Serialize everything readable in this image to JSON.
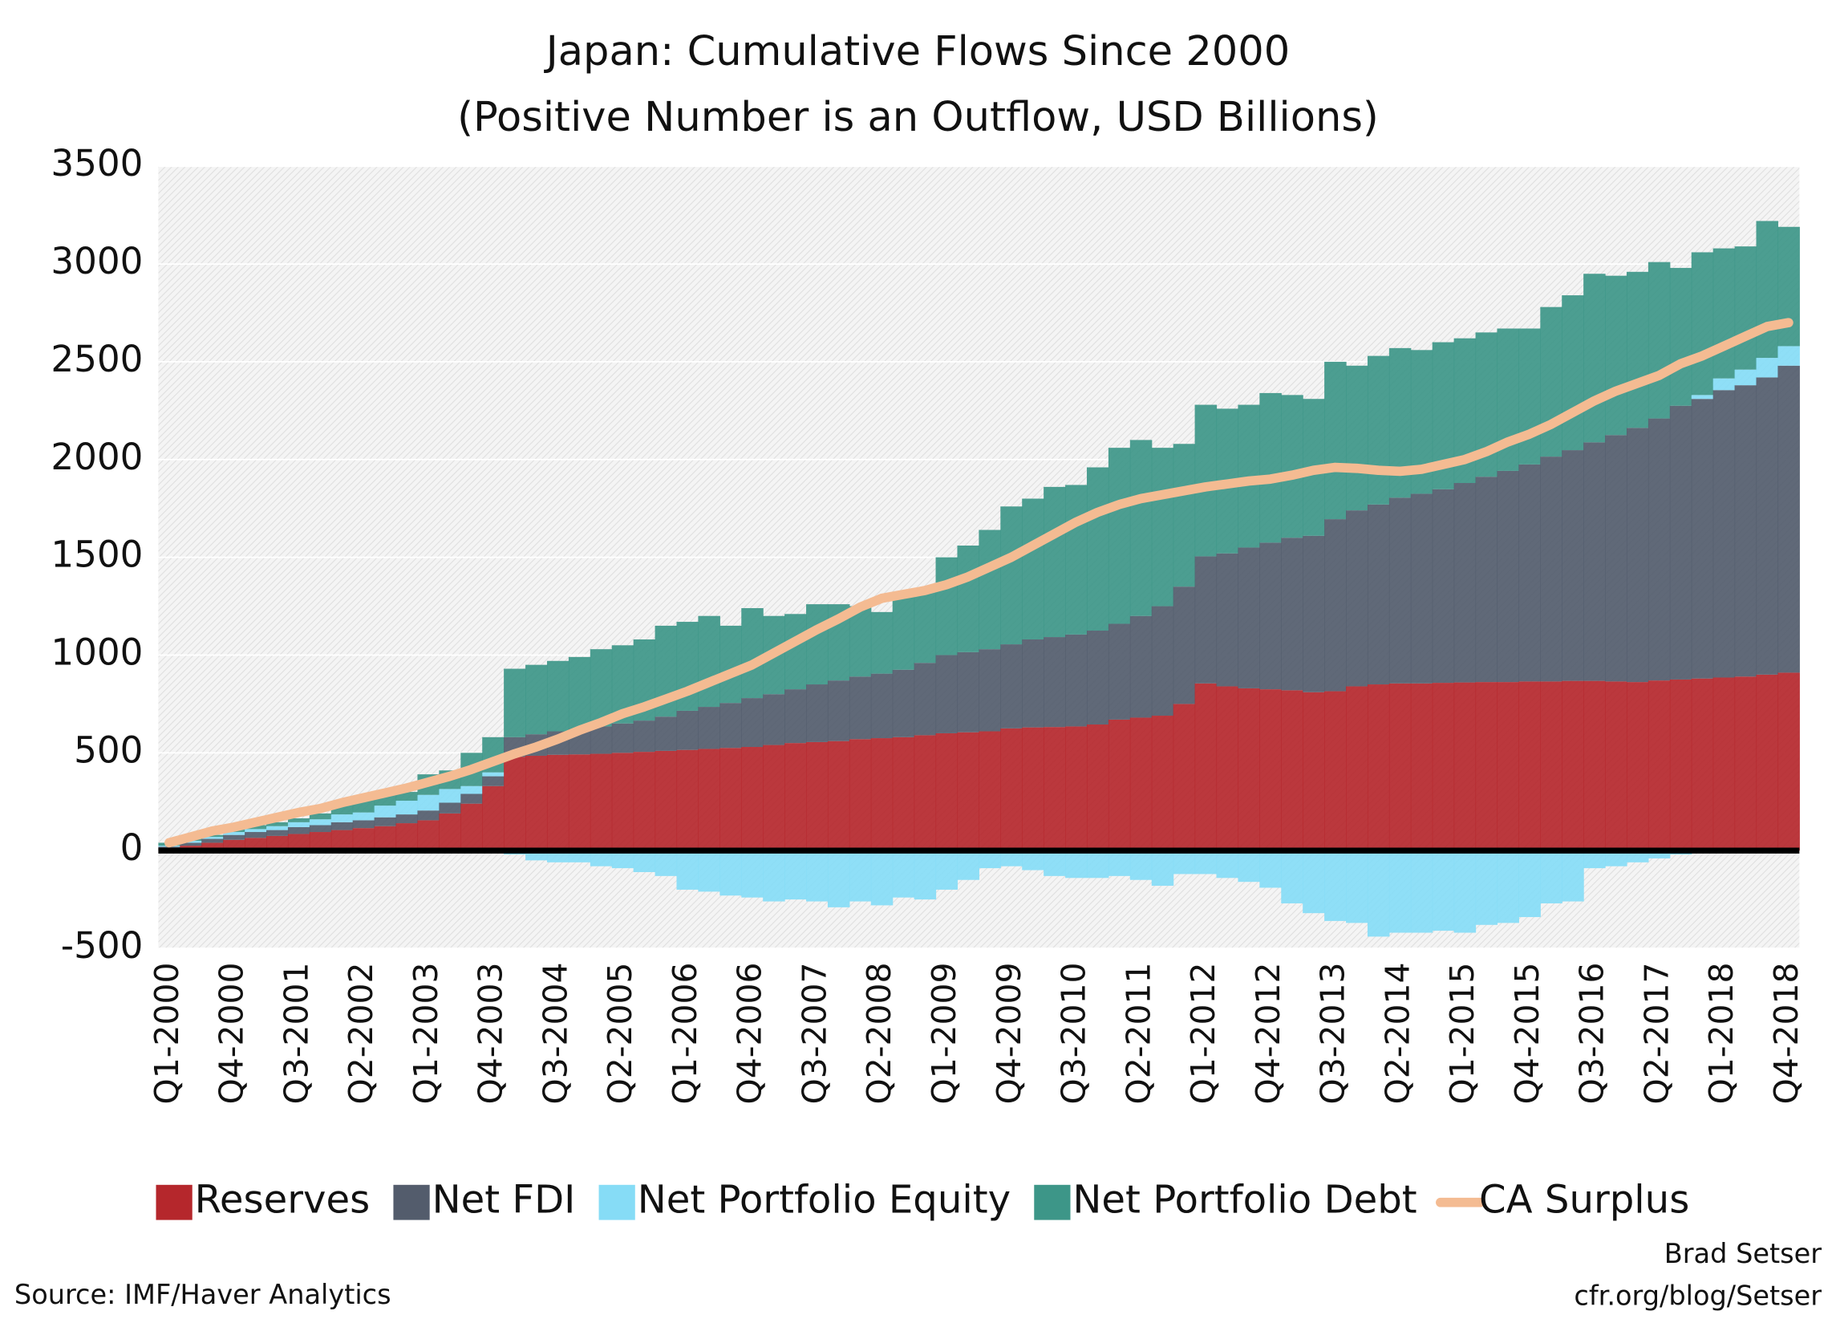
{
  "chart_data": {
    "type": "stacked_bar",
    "title": "Japan: Cumulative Flows Since 2000",
    "subtitle": "(Positive Number is an Outflow, USD Billions)",
    "source": "Source: IMF/Haver Analytics",
    "credits": [
      "Brad Setser",
      "cfr.org/blog/Setser"
    ],
    "categories": [
      "Q1-2000",
      null,
      null,
      "Q4-2000",
      null,
      null,
      "Q3-2001",
      null,
      null,
      "Q2-2002",
      null,
      null,
      "Q1-2003",
      null,
      null,
      "Q4-2003",
      null,
      null,
      "Q3-2004",
      null,
      null,
      "Q2-2005",
      null,
      null,
      "Q1-2006",
      null,
      null,
      "Q4-2006",
      null,
      null,
      "Q3-2007",
      null,
      null,
      "Q2-2008",
      null,
      null,
      "Q1-2009",
      null,
      null,
      "Q4-2009",
      null,
      null,
      "Q3-2010",
      null,
      null,
      "Q2-2011",
      null,
      null,
      "Q1-2012",
      null,
      null,
      "Q4-2012",
      null,
      null,
      "Q3-2013",
      null,
      null,
      "Q2-2014",
      null,
      null,
      "Q1-2015",
      null,
      null,
      "Q4-2015",
      null,
      null,
      "Q3-2016",
      null,
      null,
      "Q2-2017",
      null,
      null,
      "Q1-2018",
      null,
      null,
      "Q4-2018"
    ],
    "ylim": [
      -500,
      3500
    ],
    "yticks": [
      -500,
      0,
      500,
      1000,
      1500,
      2000,
      2500,
      3000,
      3500
    ],
    "grid": true,
    "legend": "bottom",
    "series": [
      {
        "name": "Reserves",
        "color": "#b5272c",
        "values": [
          10,
          25,
          40,
          55,
          65,
          75,
          85,
          95,
          105,
          115,
          125,
          140,
          155,
          190,
          240,
          330,
          480,
          485,
          490,
          492,
          495,
          500,
          505,
          510,
          515,
          520,
          525,
          530,
          540,
          550,
          555,
          560,
          570,
          575,
          580,
          590,
          600,
          605,
          610,
          625,
          630,
          632,
          635,
          645,
          670,
          680,
          690,
          750,
          855,
          840,
          830,
          825,
          820,
          810,
          815,
          840,
          850,
          855,
          855,
          858,
          860,
          862,
          862,
          865,
          865,
          868,
          868,
          865,
          862,
          870,
          875,
          880,
          885,
          890,
          900,
          910
        ]
      },
      {
        "name": "Net FDI",
        "color": "#535c6c",
        "values": [
          10,
          15,
          20,
          25,
          30,
          30,
          35,
          35,
          40,
          40,
          45,
          45,
          50,
          55,
          50,
          50,
          100,
          110,
          120,
          130,
          140,
          150,
          160,
          175,
          200,
          215,
          230,
          250,
          260,
          275,
          295,
          310,
          320,
          330,
          345,
          370,
          400,
          410,
          420,
          430,
          450,
          460,
          470,
          480,
          490,
          520,
          560,
          600,
          650,
          680,
          720,
          750,
          780,
          800,
          880,
          900,
          920,
          950,
          970,
          990,
          1020,
          1050,
          1080,
          1110,
          1150,
          1180,
          1220,
          1260,
          1300,
          1340,
          1400,
          1430,
          1470,
          1490,
          1520,
          1570
        ]
      },
      {
        "name": "Net Portfolio Equity",
        "color": "#86dcf6",
        "values": [
          5,
          10,
          10,
          15,
          15,
          20,
          25,
          30,
          40,
          40,
          60,
          70,
          80,
          70,
          40,
          20,
          -20,
          -50,
          -60,
          -60,
          -80,
          -90,
          -110,
          -130,
          -200,
          -210,
          -230,
          -240,
          -260,
          -250,
          -260,
          -290,
          -260,
          -280,
          -240,
          -250,
          -200,
          -150,
          -90,
          -80,
          -100,
          -130,
          -140,
          -140,
          -130,
          -150,
          -180,
          -120,
          -120,
          -140,
          -160,
          -190,
          -270,
          -320,
          -360,
          -370,
          -440,
          -420,
          -420,
          -410,
          -420,
          -380,
          -370,
          -340,
          -270,
          -260,
          -90,
          -80,
          -60,
          -40,
          -20,
          20,
          60,
          80,
          100,
          100
        ]
      },
      {
        "name": "Net Portfolio Debt",
        "color": "#3d9688",
        "values": [
          15,
          10,
          10,
          15,
          20,
          20,
          20,
          30,
          55,
          75,
          60,
          45,
          105,
          95,
          170,
          180,
          350,
          355,
          360,
          368,
          395,
          400,
          415,
          465,
          455,
          465,
          395,
          460,
          400,
          385,
          410,
          390,
          360,
          315,
          385,
          370,
          500,
          545,
          610,
          705,
          720,
          768,
          765,
          835,
          900,
          900,
          810,
          730,
          775,
          740,
          730,
          765,
          730,
          700,
          805,
          740,
          760,
          765,
          735,
          752,
          740,
          738,
          728,
          695,
          765,
          792,
          862,
          815,
          798,
          800,
          705,
          730,
          665,
          630,
          700,
          610
        ]
      },
      {
        "name": "CA Surplus",
        "color": "#f4bb92",
        "type": "line",
        "values": [
          40,
          70,
          100,
          120,
          145,
          170,
          195,
          215,
          245,
          270,
          295,
          320,
          350,
          380,
          415,
          455,
          495,
          530,
          570,
          615,
          655,
          700,
          735,
          775,
          815,
          860,
          905,
          950,
          1010,
          1070,
          1130,
          1185,
          1245,
          1290,
          1310,
          1330,
          1360,
          1400,
          1450,
          1500,
          1560,
          1620,
          1680,
          1730,
          1770,
          1800,
          1820,
          1840,
          1860,
          1875,
          1890,
          1900,
          1920,
          1945,
          1960,
          1955,
          1945,
          1940,
          1950,
          1975,
          2000,
          2040,
          2090,
          2130,
          2180,
          2240,
          2300,
          2350,
          2390,
          2430,
          2490,
          2530,
          2580,
          2630,
          2680,
          2700
        ]
      }
    ]
  }
}
